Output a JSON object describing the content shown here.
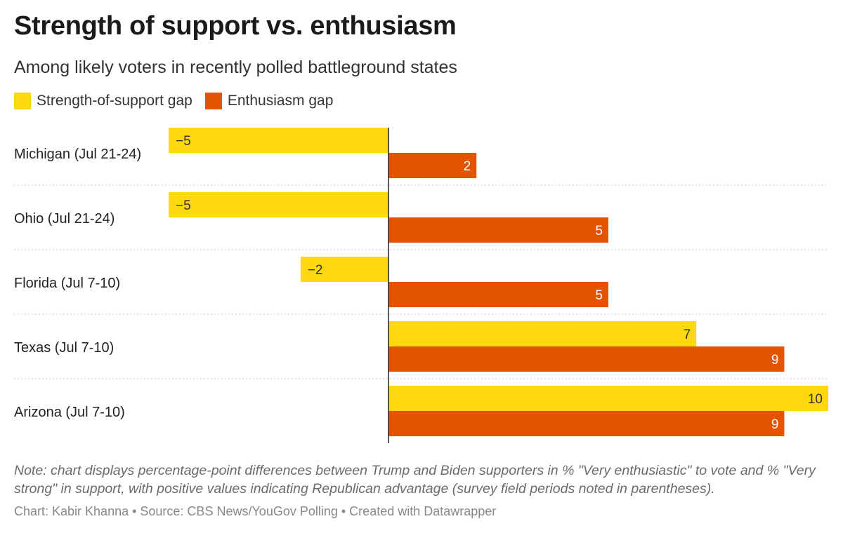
{
  "title": "Strength of support vs. enthusiasm",
  "subtitle": "Among likely voters in recently polled battleground states",
  "colors": {
    "strength": "#fdd80f",
    "enthusiasm": "#e45300",
    "axis": "#222222",
    "separator": "#c8c8c8"
  },
  "chart_data": {
    "type": "bar",
    "orientation": "horizontal",
    "grouped": true,
    "categories": [
      "Michigan (Jul 21-24)",
      "Ohio (Jul 21-24)",
      "Florida (Jul 7-10)",
      "Texas (Jul 7-10)",
      "Arizona (Jul 7-10)"
    ],
    "series": [
      {
        "name": "Strength-of-support gap",
        "color": "#fdd80f",
        "values": [
          -5,
          -5,
          -2,
          7,
          10
        ],
        "labels": [
          "−5",
          "−5",
          "−2",
          "7",
          "10"
        ]
      },
      {
        "name": "Enthusiasm gap",
        "color": "#e45300",
        "values": [
          2,
          5,
          5,
          9,
          9
        ],
        "labels": [
          "2",
          "5",
          "5",
          "9",
          "9"
        ]
      }
    ],
    "xlim": [
      -5,
      10
    ],
    "legend": "top-left",
    "grid": false
  },
  "note": "Note: chart displays percentage-point differences between Trump and Biden supporters in % \"Very enthusiastic\" to vote and % \"Very strong\" in support, with positive values indicating Republican advantage (survey field periods noted in parentheses).",
  "footer": "Chart: Kabir Khanna • Source: CBS News/YouGov Polling • Created with Datawrapper"
}
